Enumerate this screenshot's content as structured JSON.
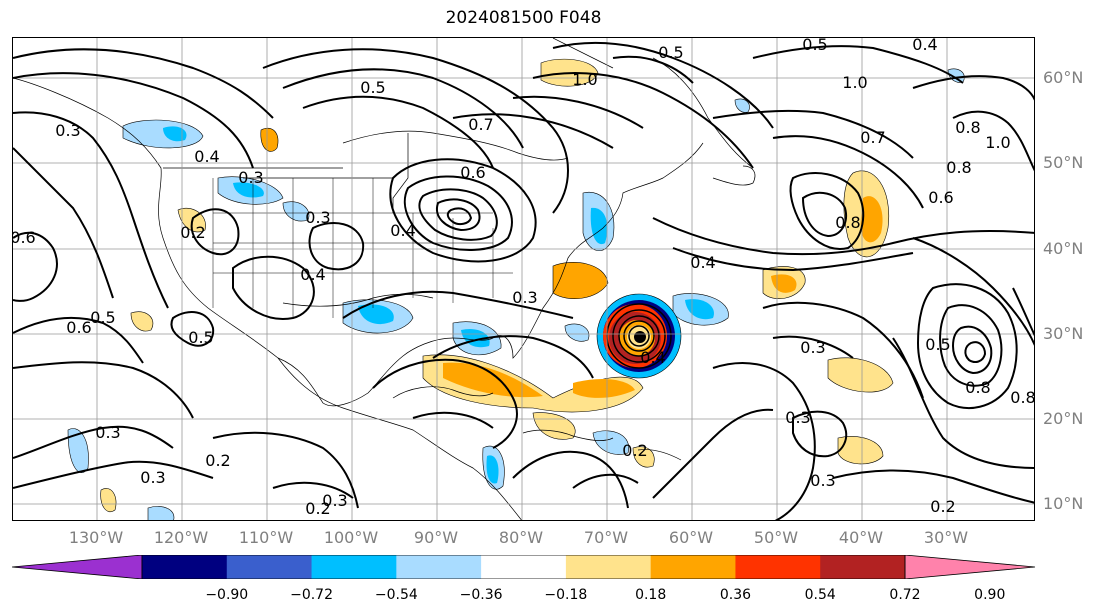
{
  "title": "2024081500 F048",
  "lat_labels": [
    "60°N",
    "50°N",
    "40°N",
    "30°N",
    "20°N",
    "10°N"
  ],
  "lon_labels": [
    "130°W",
    "120°W",
    "110°W",
    "100°W",
    "90°W",
    "80°W",
    "70°W",
    "60°W",
    "50°W",
    "40°W",
    "30°W"
  ],
  "colorbar": {
    "ticks": [
      "−0.90",
      "−0.72",
      "−0.54",
      "−0.36",
      "−0.18",
      "0.18",
      "0.36",
      "0.54",
      "0.72",
      "0.90"
    ],
    "colors": [
      "#9b30d0",
      "#000080",
      "#3a5fcd",
      "#00bfff",
      "#a9dcff",
      "#ffffff",
      "#ffe38c",
      "#ffa500",
      "#ff3300",
      "#b22222",
      "#ff82ab"
    ]
  },
  "contour_labels": [
    "0.5",
    "1.0",
    "0.5",
    "0.4",
    "0.7",
    "0.5",
    "1.0",
    "0.4",
    "0.8",
    "1.0",
    "0.7",
    "0.8",
    "0.6",
    "0.8",
    "0.4",
    "0.6",
    "0.6",
    "0.4",
    "0.2",
    "0.3",
    "0.4",
    "0.3",
    "0.5",
    "0.6",
    "0.5",
    "0.3",
    "0.4",
    "0.3",
    "0.3",
    "0.5",
    "0.8",
    "0.3",
    "0.2",
    "0.3",
    "0.2",
    "0.3",
    "0.2",
    "0.2",
    "0.3",
    "0.3",
    "0.8"
  ]
}
